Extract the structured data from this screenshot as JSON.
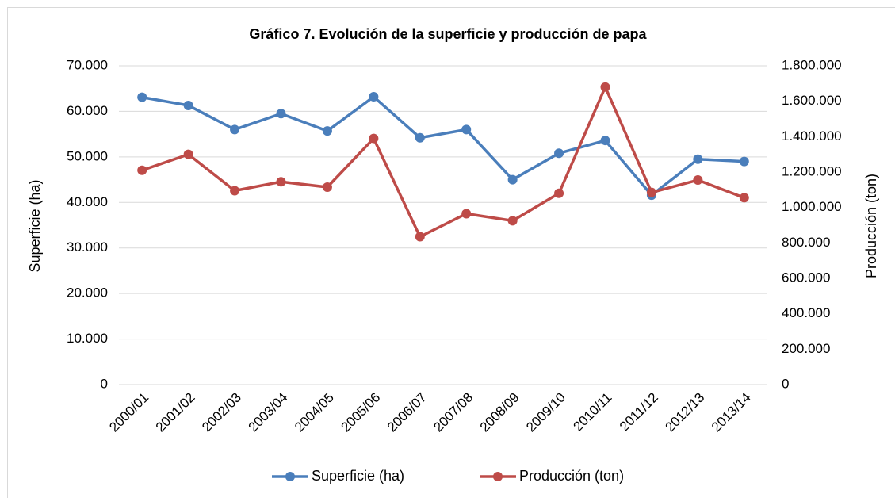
{
  "chart_data": {
    "type": "line",
    "title": "Gráfico 7. Evolución de la superficie y producción de papa",
    "y_label": "Superficie (ha)",
    "y2_label": "Producción (ton)",
    "categories": [
      "2000/01",
      "2001/02",
      "2002/03",
      "2003/04",
      "2004/05",
      "2005/06",
      "2006/07",
      "2007/08",
      "2008/09",
      "2009/10",
      "2010/11",
      "2011/12",
      "2012/13",
      "2013/14"
    ],
    "series": [
      {
        "name": "Superficie (ha)",
        "color": "#4a7ebb",
        "values": [
          63100,
          61300,
          56000,
          59500,
          55700,
          63200,
          54200,
          56000,
          45000,
          50800,
          53600,
          41600,
          49500,
          49000
        ]
      },
      {
        "name": "Producción (ton)",
        "color": "#be4b48",
        "axis": "y2",
        "values": [
          1210000,
          1300000,
          1095000,
          1145000,
          1115000,
          1390000,
          835000,
          965000,
          925000,
          1080000,
          1680000,
          1085000,
          1155000,
          1055000
        ]
      }
    ],
    "ylim": [
      0,
      70000
    ],
    "yticks": [
      0,
      {
        "value": 10000,
        "label": "10.000"
      },
      {
        "value": 20000,
        "label": "20.000"
      },
      {
        "value": 30000,
        "label": "30.000"
      },
      {
        "value": 40000,
        "label": "40.000"
      },
      {
        "value": 50000,
        "label": "50.000"
      },
      {
        "value": 60000,
        "label": "60.000"
      },
      {
        "value": 70000,
        "label": "70.000"
      }
    ],
    "y2lim": [
      0,
      1800000
    ],
    "y2ticks": [
      0,
      {
        "value": 200000,
        "label": "200.000"
      },
      {
        "value": 400000,
        "label": "400.000"
      },
      {
        "value": 600000,
        "label": "600.000"
      },
      {
        "value": 800000,
        "label": "800.000"
      },
      {
        "value": 1000000,
        "label": "1.000.000"
      },
      {
        "value": 1200000,
        "label": "1.200.000"
      },
      {
        "value": 1400000,
        "label": "1.400.000"
      },
      {
        "value": 1600000,
        "label": "1.600.000"
      },
      {
        "value": 1800000,
        "label": "1.800.000"
      }
    ],
    "grid": true,
    "legend": "bottom"
  }
}
